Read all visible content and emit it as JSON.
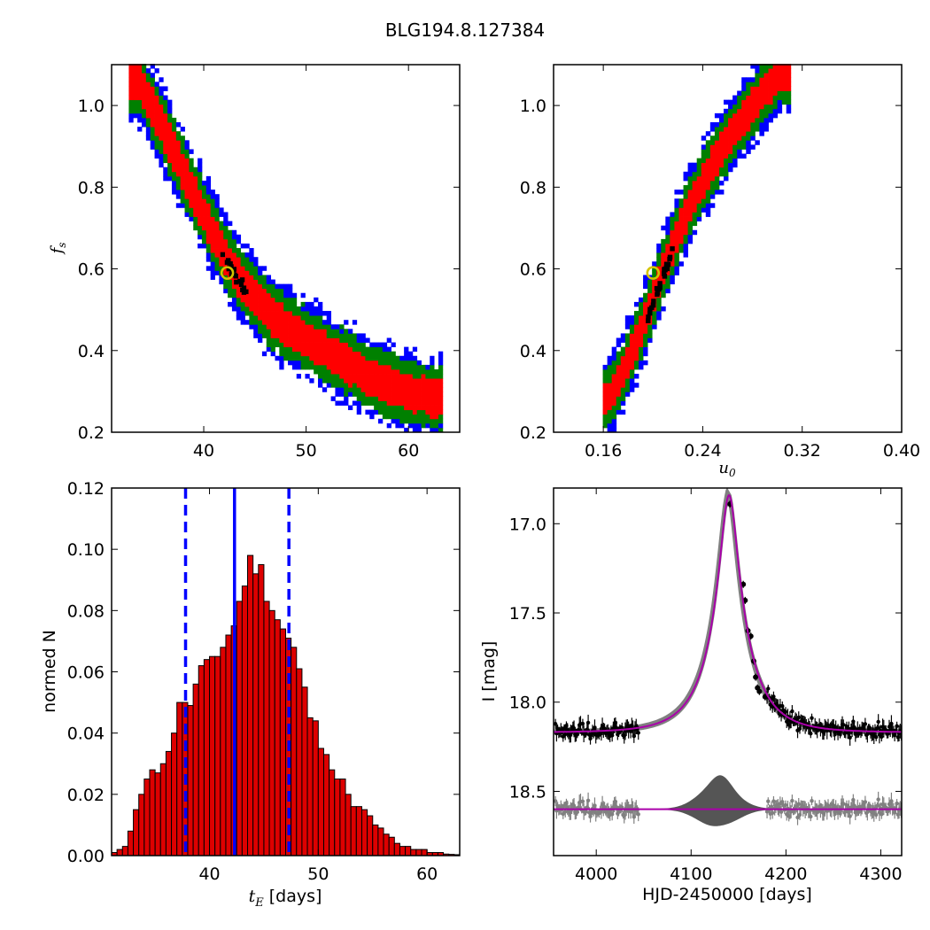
{
  "figure_title": "BLG194.8.127384",
  "colors": {
    "sigma1": "#ff0000",
    "sigma2": "#008000",
    "sigma3": "#0000ff",
    "best": "#000000",
    "hist_bar": "#dd0000",
    "model": "#aa00aa",
    "band": "#808080",
    "marker": "#d4c400"
  },
  "chart_data": [
    {
      "type": "heatmap",
      "panel": "tE-fs",
      "xlim": [
        31,
        65
      ],
      "ylim": [
        0.2,
        1.1
      ],
      "xticks": [
        40,
        50,
        60
      ],
      "yticks": [
        0.2,
        0.4,
        0.6,
        0.8,
        1.0
      ],
      "xtick_labels": [
        "40",
        "50",
        "60"
      ],
      "ytick_labels": [
        "0.2",
        "0.4",
        "0.6",
        "0.8",
        "1.0"
      ],
      "ylabel": "f",
      "ylabel_sub": "s",
      "best_fit": {
        "x": 42.3,
        "y": 0.59
      },
      "ridge": [
        [
          33.5,
          1.05
        ],
        [
          36,
          0.93
        ],
        [
          38,
          0.82
        ],
        [
          40,
          0.72
        ],
        [
          42,
          0.62
        ],
        [
          44,
          0.55
        ],
        [
          46,
          0.49
        ],
        [
          48,
          0.45
        ],
        [
          50,
          0.42
        ],
        [
          52,
          0.39
        ],
        [
          54,
          0.36
        ],
        [
          56,
          0.33
        ],
        [
          59,
          0.3
        ],
        [
          62,
          0.28
        ]
      ],
      "contour_levels": [
        "1 sigma",
        "2 sigma",
        "3 sigma"
      ],
      "grid": false
    },
    {
      "type": "heatmap",
      "panel": "u0-fs",
      "xlim": [
        0.12,
        0.4
      ],
      "ylim": [
        0.2,
        1.1
      ],
      "xticks": [
        0.16,
        0.24,
        0.32,
        0.4
      ],
      "yticks": [
        0.2,
        0.4,
        0.6,
        0.8,
        1.0
      ],
      "xtick_labels": [
        "0.16",
        "0.24",
        "0.32",
        "0.40"
      ],
      "ytick_labels": [
        "0.2",
        "0.4",
        "0.6",
        "0.8",
        "1.0"
      ],
      "xlabel": "u",
      "xlabel_sub": "0",
      "best_fit": {
        "x": 0.2,
        "y": 0.59
      },
      "ridge": [
        [
          0.164,
          0.28
        ],
        [
          0.178,
          0.37
        ],
        [
          0.19,
          0.45
        ],
        [
          0.2,
          0.54
        ],
        [
          0.21,
          0.62
        ],
        [
          0.223,
          0.72
        ],
        [
          0.24,
          0.82
        ],
        [
          0.26,
          0.92
        ],
        [
          0.285,
          1.02
        ],
        [
          0.3,
          1.07
        ]
      ],
      "grid": false
    },
    {
      "type": "bar",
      "panel": "tE-histogram",
      "xlim": [
        31,
        63
      ],
      "ylim": [
        0,
        0.12
      ],
      "xticks": [
        40,
        50,
        60
      ],
      "yticks": [
        0.0,
        0.02,
        0.04,
        0.06,
        0.08,
        0.1,
        0.12
      ],
      "xtick_labels": [
        "40",
        "50",
        "60"
      ],
      "ytick_labels": [
        "0.00",
        "0.02",
        "0.04",
        "0.06",
        "0.08",
        "0.10",
        "0.12"
      ],
      "xlabel_var": "t",
      "xlabel_sub": "E",
      "xlabel_unit": "[days]",
      "ylabel": "normed N",
      "bin_start": 31.0,
      "bin_width": 0.5,
      "values": [
        0.001,
        0.002,
        0.003,
        0.008,
        0.015,
        0.02,
        0.025,
        0.028,
        0.027,
        0.03,
        0.034,
        0.04,
        0.05,
        0.05,
        0.049,
        0.056,
        0.062,
        0.064,
        0.065,
        0.065,
        0.068,
        0.072,
        0.075,
        0.083,
        0.088,
        0.098,
        0.092,
        0.095,
        0.083,
        0.08,
        0.077,
        0.074,
        0.071,
        0.068,
        0.061,
        0.055,
        0.045,
        0.044,
        0.035,
        0.033,
        0.028,
        0.025,
        0.025,
        0.02,
        0.016,
        0.016,
        0.015,
        0.013,
        0.01,
        0.009,
        0.007,
        0.006,
        0.004,
        0.003,
        0.003,
        0.002,
        0.002,
        0.002,
        0.001,
        0.001,
        0.001,
        0.0005,
        0.0004,
        0.0003
      ],
      "vlines": {
        "median": 42.3,
        "lower": 37.8,
        "upper": 47.3
      },
      "grid": false
    },
    {
      "type": "scatter",
      "panel": "light-curve",
      "xlim": [
        3955,
        4322
      ],
      "ylim": [
        18.86,
        16.8
      ],
      "y_inverted": true,
      "xticks": [
        4000,
        4100,
        4200,
        4300
      ],
      "yticks": [
        17.0,
        17.5,
        18.0,
        18.5
      ],
      "xtick_labels": [
        "4000",
        "4100",
        "4200",
        "4300"
      ],
      "ytick_labels": [
        "17.0",
        "17.5",
        "18.0",
        "18.5"
      ],
      "xlabel": "HJD-2450000 [days]",
      "ylabel": "I [mag]",
      "model": {
        "t0": 4140,
        "tE": 42.3,
        "u0": 0.2,
        "fs": 0.59,
        "baseline": 18.17
      },
      "residual_offset": 18.6,
      "peak_points": [
        [
          4141,
          16.89
        ],
        [
          4155,
          17.34
        ],
        [
          4157,
          17.43
        ],
        [
          4160,
          17.6
        ],
        [
          4163,
          17.63
        ],
        [
          4166,
          17.77
        ],
        [
          4168,
          17.86
        ],
        [
          4170,
          17.92
        ],
        [
          4172,
          17.94
        ],
        [
          4178,
          17.97
        ]
      ],
      "grid": false
    }
  ]
}
